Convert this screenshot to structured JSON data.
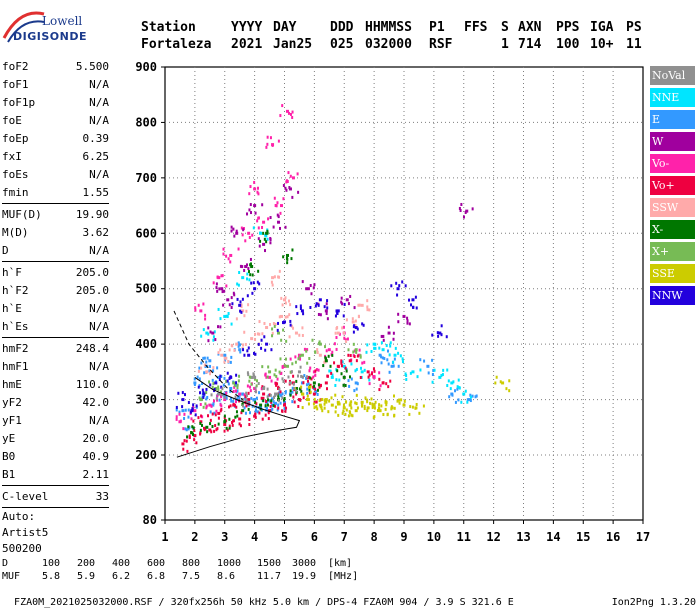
{
  "logo": {
    "line1": "Lowell",
    "line2": "DIGISONDE"
  },
  "header": {
    "labels": [
      "Station",
      "YYYY",
      "DAY",
      "DDD",
      "HHMMSS",
      "P1",
      "FFS",
      "S",
      "AXN",
      "PPS",
      "IGA",
      "PS"
    ],
    "values": [
      "Fortaleza",
      "2021",
      "Jan25",
      "025",
      "032000",
      "RSF",
      "",
      "1",
      "714",
      "100",
      "10+",
      "11"
    ]
  },
  "params": {
    "group1": [
      {
        "label": "foF2",
        "value": "5.500"
      },
      {
        "label": "foF1",
        "value": "N/A"
      },
      {
        "label": "foF1p",
        "value": "N/A"
      },
      {
        "label": "foE",
        "value": "N/A"
      },
      {
        "label": "foEp",
        "value": "0.39"
      },
      {
        "label": "fxI",
        "value": "6.25"
      },
      {
        "label": "foEs",
        "value": "N/A"
      },
      {
        "label": "fmin",
        "value": "1.55"
      }
    ],
    "group2": [
      {
        "label": "MUF(D)",
        "value": "19.90"
      },
      {
        "label": "M(D)",
        "value": "3.62"
      },
      {
        "label": "D",
        "value": "N/A"
      }
    ],
    "group3": [
      {
        "label": "h`F",
        "value": "205.0"
      },
      {
        "label": "h`F2",
        "value": "205.0"
      },
      {
        "label": "h`E",
        "value": "N/A"
      },
      {
        "label": "h`Es",
        "value": "N/A"
      }
    ],
    "group4": [
      {
        "label": "hmF2",
        "value": "248.4"
      },
      {
        "label": "hmF1",
        "value": "N/A"
      },
      {
        "label": "hmE",
        "value": "110.0"
      },
      {
        "label": "yF2",
        "value": "42.0"
      },
      {
        "label": "yF1",
        "value": "N/A"
      },
      {
        "label": "yE",
        "value": "20.0"
      },
      {
        "label": "B0",
        "value": "40.9"
      },
      {
        "label": "B1",
        "value": "2.11"
      }
    ],
    "group5": [
      {
        "label": "C-level",
        "value": "33"
      }
    ],
    "auto_lines": [
      "Auto:",
      "Artist5",
      "500200"
    ]
  },
  "legend": [
    {
      "name": "NoVal",
      "color": "#909090"
    },
    {
      "name": "NNE",
      "color": "#00e5ff"
    },
    {
      "name": "E",
      "color": "#3399ff"
    },
    {
      "name": "W",
      "color": "#a0009e"
    },
    {
      "name": "Vo-",
      "color": "#ff22aa"
    },
    {
      "name": "Vo+",
      "color": "#ee0040"
    },
    {
      "name": "SSW",
      "color": "#ffaaaa"
    },
    {
      "name": "X-",
      "color": "#007700"
    },
    {
      "name": "X+",
      "color": "#77bb55"
    },
    {
      "name": "SSE",
      "color": "#cccc00"
    },
    {
      "name": "NNW",
      "color": "#2200dd"
    }
  ],
  "chart_data": {
    "type": "scatter",
    "xlim": [
      1,
      17
    ],
    "ylim": [
      80,
      900
    ],
    "x_ticks": [
      "1",
      "2",
      "3",
      "4",
      "5",
      "6",
      "7",
      "8",
      "9",
      "10",
      "11",
      "12",
      "13",
      "14",
      "15",
      "16",
      "17"
    ],
    "y_ticks": [
      {
        "value": 200,
        "label": "200"
      },
      {
        "value": 300,
        "label": "300"
      },
      {
        "value": 400,
        "label": "400"
      },
      {
        "value": 500,
        "label": "500"
      },
      {
        "value": 600,
        "label": "600"
      },
      {
        "value": 700,
        "label": "700"
      },
      {
        "value": 800,
        "label": "800"
      },
      {
        "value": 900,
        "label": "900"
      },
      {
        "value": 80,
        "label": "80"
      }
    ],
    "grid": true,
    "legend_position": "right",
    "series": [
      {
        "color": "#3399ff",
        "points": [
          [
            1.6,
            280
          ],
          [
            2.0,
            330
          ],
          [
            2.4,
            360
          ],
          [
            2.8,
            340
          ],
          [
            3.2,
            320
          ],
          [
            3.6,
            310
          ],
          [
            4.0,
            300
          ],
          [
            4.4,
            295
          ],
          [
            4.8,
            300
          ],
          [
            5.2,
            310
          ],
          [
            5.6,
            330
          ],
          [
            6.0,
            320
          ],
          [
            2.2,
            300
          ],
          [
            2.6,
            290
          ],
          [
            3.0,
            310
          ],
          [
            3.4,
            300
          ],
          [
            3.8,
            290
          ],
          [
            4.2,
            285
          ],
          [
            4.6,
            290
          ],
          [
            5.0,
            295
          ],
          [
            8.2,
            380
          ],
          [
            8.6,
            360
          ],
          [
            9.8,
            360
          ],
          [
            10.6,
            310
          ],
          [
            11.2,
            300
          ],
          [
            7.4,
            330
          ],
          [
            3.0,
            380
          ],
          [
            3.5,
            390
          ],
          [
            2.5,
            370
          ],
          [
            1.8,
            250
          ]
        ]
      },
      {
        "color": "#00e5ff",
        "points": [
          [
            8.0,
            400
          ],
          [
            8.3,
            390
          ],
          [
            8.7,
            380
          ],
          [
            9.3,
            350
          ],
          [
            10.2,
            340
          ],
          [
            11.0,
            310
          ],
          [
            7.0,
            360
          ],
          [
            7.6,
            350
          ],
          [
            6.6,
            340
          ],
          [
            10.6,
            330
          ],
          [
            3.0,
            450
          ],
          [
            3.6,
            520
          ],
          [
            4.2,
            600
          ],
          [
            2.4,
            420
          ]
        ]
      },
      {
        "color": "#ff22aa",
        "points": [
          [
            1.5,
            260
          ],
          [
            2.0,
            280
          ],
          [
            2.5,
            290
          ],
          [
            3.0,
            300
          ],
          [
            3.5,
            310
          ],
          [
            4.0,
            320
          ],
          [
            4.5,
            340
          ],
          [
            5.0,
            360
          ],
          [
            5.5,
            380
          ],
          [
            6.0,
            350
          ],
          [
            6.5,
            390
          ],
          [
            7.0,
            420
          ],
          [
            7.5,
            380
          ],
          [
            8.0,
            340
          ],
          [
            3.2,
            560
          ],
          [
            3.8,
            600
          ],
          [
            4.3,
            620
          ],
          [
            4.9,
            650
          ],
          [
            5.3,
            700
          ],
          [
            2.8,
            520
          ],
          [
            4.6,
            760
          ],
          [
            5.1,
            820
          ],
          [
            4.0,
            680
          ],
          [
            2.2,
            460
          ]
        ]
      },
      {
        "color": "#ee0040",
        "points": [
          [
            1.6,
            220
          ],
          [
            2.0,
            235
          ],
          [
            2.5,
            245
          ],
          [
            3.0,
            255
          ],
          [
            3.5,
            265
          ],
          [
            4.0,
            270
          ],
          [
            4.5,
            280
          ],
          [
            5.0,
            290
          ],
          [
            5.5,
            300
          ],
          [
            6.0,
            310
          ],
          [
            6.4,
            330
          ],
          [
            6.8,
            360
          ],
          [
            7.2,
            370
          ],
          [
            7.8,
            350
          ],
          [
            8.3,
            330
          ],
          [
            2.2,
            260
          ],
          [
            2.8,
            275
          ],
          [
            3.3,
            290
          ],
          [
            3.8,
            300
          ],
          [
            4.3,
            310
          ],
          [
            4.8,
            320
          ],
          [
            5.3,
            330
          ],
          [
            5.8,
            340
          ]
        ]
      },
      {
        "color": "#ffaaaa",
        "points": [
          [
            2.4,
            350
          ],
          [
            2.9,
            380
          ],
          [
            3.4,
            400
          ],
          [
            3.9,
            410
          ],
          [
            4.4,
            430
          ],
          [
            4.9,
            450
          ],
          [
            5.4,
            420
          ],
          [
            6.2,
            380
          ],
          [
            6.8,
            420
          ],
          [
            7.3,
            440
          ],
          [
            5.0,
            480
          ],
          [
            4.6,
            520
          ],
          [
            3.6,
            460
          ],
          [
            7.6,
            470
          ]
        ]
      },
      {
        "color": "#a0009e",
        "points": [
          [
            2.6,
            420
          ],
          [
            3.1,
            480
          ],
          [
            3.7,
            540
          ],
          [
            4.3,
            580
          ],
          [
            4.8,
            620
          ],
          [
            5.2,
            680
          ],
          [
            3.4,
            600
          ],
          [
            4.0,
            650
          ],
          [
            2.9,
            500
          ],
          [
            11.1,
            640
          ],
          [
            6.4,
            460
          ],
          [
            7.1,
            480
          ],
          [
            5.8,
            500
          ],
          [
            8.5,
            420
          ],
          [
            9.0,
            450
          ]
        ]
      },
      {
        "color": "#007700",
        "points": [
          [
            1.9,
            240
          ],
          [
            2.4,
            250
          ],
          [
            3.0,
            260
          ],
          [
            3.6,
            280
          ],
          [
            4.2,
            290
          ],
          [
            4.8,
            300
          ],
          [
            5.4,
            320
          ],
          [
            6.0,
            330
          ],
          [
            6.4,
            370
          ],
          [
            4.4,
            600
          ],
          [
            5.1,
            560
          ],
          [
            3.9,
            540
          ],
          [
            7.0,
            340
          ]
        ]
      },
      {
        "color": "#77bb55",
        "points": [
          [
            2.2,
            300
          ],
          [
            2.7,
            320
          ],
          [
            3.3,
            330
          ],
          [
            3.9,
            340
          ],
          [
            4.5,
            350
          ],
          [
            5.1,
            360
          ],
          [
            5.6,
            380
          ],
          [
            6.2,
            400
          ],
          [
            4.8,
            420
          ],
          [
            7.4,
            390
          ]
        ]
      },
      {
        "color": "#cccc00",
        "points": [
          [
            5.8,
            300
          ],
          [
            6.2,
            290
          ],
          [
            6.6,
            290
          ],
          [
            7.0,
            285
          ],
          [
            7.4,
            280
          ],
          [
            7.8,
            285
          ],
          [
            8.2,
            280
          ],
          [
            8.6,
            285
          ],
          [
            9.0,
            290
          ],
          [
            9.4,
            285
          ],
          [
            6.4,
            300
          ],
          [
            6.8,
            295
          ],
          [
            7.2,
            290
          ],
          [
            7.6,
            295
          ],
          [
            8.0,
            290
          ],
          [
            8.4,
            295
          ],
          [
            12.3,
            330
          ],
          [
            5.6,
            310
          ]
        ]
      },
      {
        "color": "#2200dd",
        "points": [
          [
            1.6,
            300
          ],
          [
            1.9,
            280
          ],
          [
            2.3,
            310
          ],
          [
            2.7,
            330
          ],
          [
            3.2,
            340
          ],
          [
            3.8,
            380
          ],
          [
            4.4,
            400
          ],
          [
            5.0,
            440
          ],
          [
            5.6,
            460
          ],
          [
            6.2,
            480
          ],
          [
            6.8,
            460
          ],
          [
            8.8,
            500
          ],
          [
            9.3,
            480
          ],
          [
            10.2,
            420
          ],
          [
            3.5,
            470
          ],
          [
            4.0,
            500
          ],
          [
            7.4,
            430
          ]
        ]
      },
      {
        "color": "#909090",
        "points": [
          [
            4.0,
            340
          ],
          [
            4.3,
            320
          ],
          [
            4.7,
            310
          ],
          [
            5.2,
            330
          ],
          [
            3.6,
            300
          ],
          [
            2.8,
            310
          ],
          [
            5.5,
            350
          ]
        ]
      }
    ],
    "trace_dashed": [
      [
        1.3,
        460
      ],
      [
        1.8,
        400
      ],
      [
        2.4,
        360
      ],
      [
        3.1,
        320
      ],
      [
        3.6,
        300
      ]
    ],
    "trace_solid": [
      [
        1.4,
        196
      ],
      [
        2.5,
        215
      ],
      [
        3.6,
        232
      ],
      [
        4.6,
        243
      ],
      [
        5.4,
        250
      ],
      [
        5.5,
        262
      ],
      [
        5.0,
        270
      ],
      [
        4.3,
        282
      ],
      [
        3.4,
        300
      ],
      [
        2.6,
        318
      ],
      [
        2.0,
        340
      ]
    ]
  },
  "footer": {
    "d_label": "D",
    "d_values": [
      "100",
      "200",
      "400",
      "600",
      "800",
      "1000",
      "1500",
      "3000"
    ],
    "d_unit": "[km]",
    "muf_label": "MUF",
    "muf_values": [
      "5.8",
      "5.9",
      "6.2",
      "6.8",
      "7.5",
      "8.6",
      "11.7",
      "19.9"
    ],
    "muf_unit": "[MHz]",
    "file_info": "FZA0M_2021025032000.RSF / 320fx256h 50 kHz 5.0 km / DPS-4 FZA0M 904 / 3.9 S 321.6 E",
    "version": "Ion2Png 1.3.20"
  }
}
